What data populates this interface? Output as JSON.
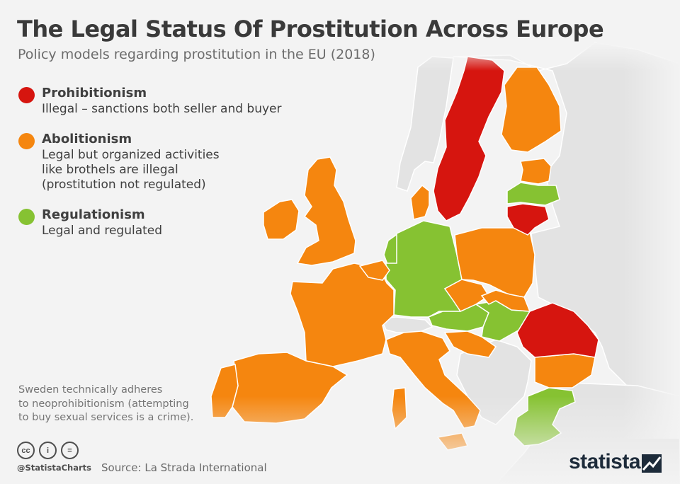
{
  "header": {
    "title": "The Legal Status Of Prostitution Across Europe",
    "subtitle": "Policy models regarding prostitution in the EU (2018)"
  },
  "colors": {
    "prohibitionism": "#d6150f",
    "abolitionism": "#f5860f",
    "regulationism": "#86c232",
    "non_eu": "#e3e3e3",
    "sea": "#f3f3f3"
  },
  "legend": [
    {
      "name": "Prohibitionism",
      "description": "Illegal – sanctions both seller and buyer",
      "color": "#d6150f"
    },
    {
      "name": "Abolitionism",
      "description": "Legal but organized activities\nlike brothels are illegal\n(prostitution not regulated)",
      "color": "#f5860f"
    },
    {
      "name": "Regulationism",
      "description": "Legal and regulated",
      "color": "#86c232"
    }
  ],
  "countries": {
    "prohibitionism": [
      "Sweden",
      "Lithuania",
      "Romania"
    ],
    "abolitionism": [
      "Finland",
      "Estonia",
      "Ireland",
      "United Kingdom",
      "Denmark",
      "France",
      "Spain",
      "Portugal",
      "Italy",
      "Belgium",
      "Luxembourg",
      "Poland",
      "Czech Republic",
      "Slovakia",
      "Slovenia",
      "Croatia",
      "Bulgaria",
      "Malta",
      "Cyprus"
    ],
    "regulationism": [
      "Latvia",
      "Netherlands",
      "Germany",
      "Austria",
      "Hungary",
      "Greece"
    ]
  },
  "note": "Sweden technically adheres\nto neoprohibitionism (attempting\nto buy sexual services is a crime).",
  "footer": {
    "cc_icons": [
      "cc-icon",
      "attribution-icon",
      "no-derivatives-icon"
    ],
    "cc_labels": [
      "cc",
      "i",
      "="
    ],
    "handle": "@StatistaCharts",
    "source": "Source: La Strada International",
    "brand": "statista"
  }
}
